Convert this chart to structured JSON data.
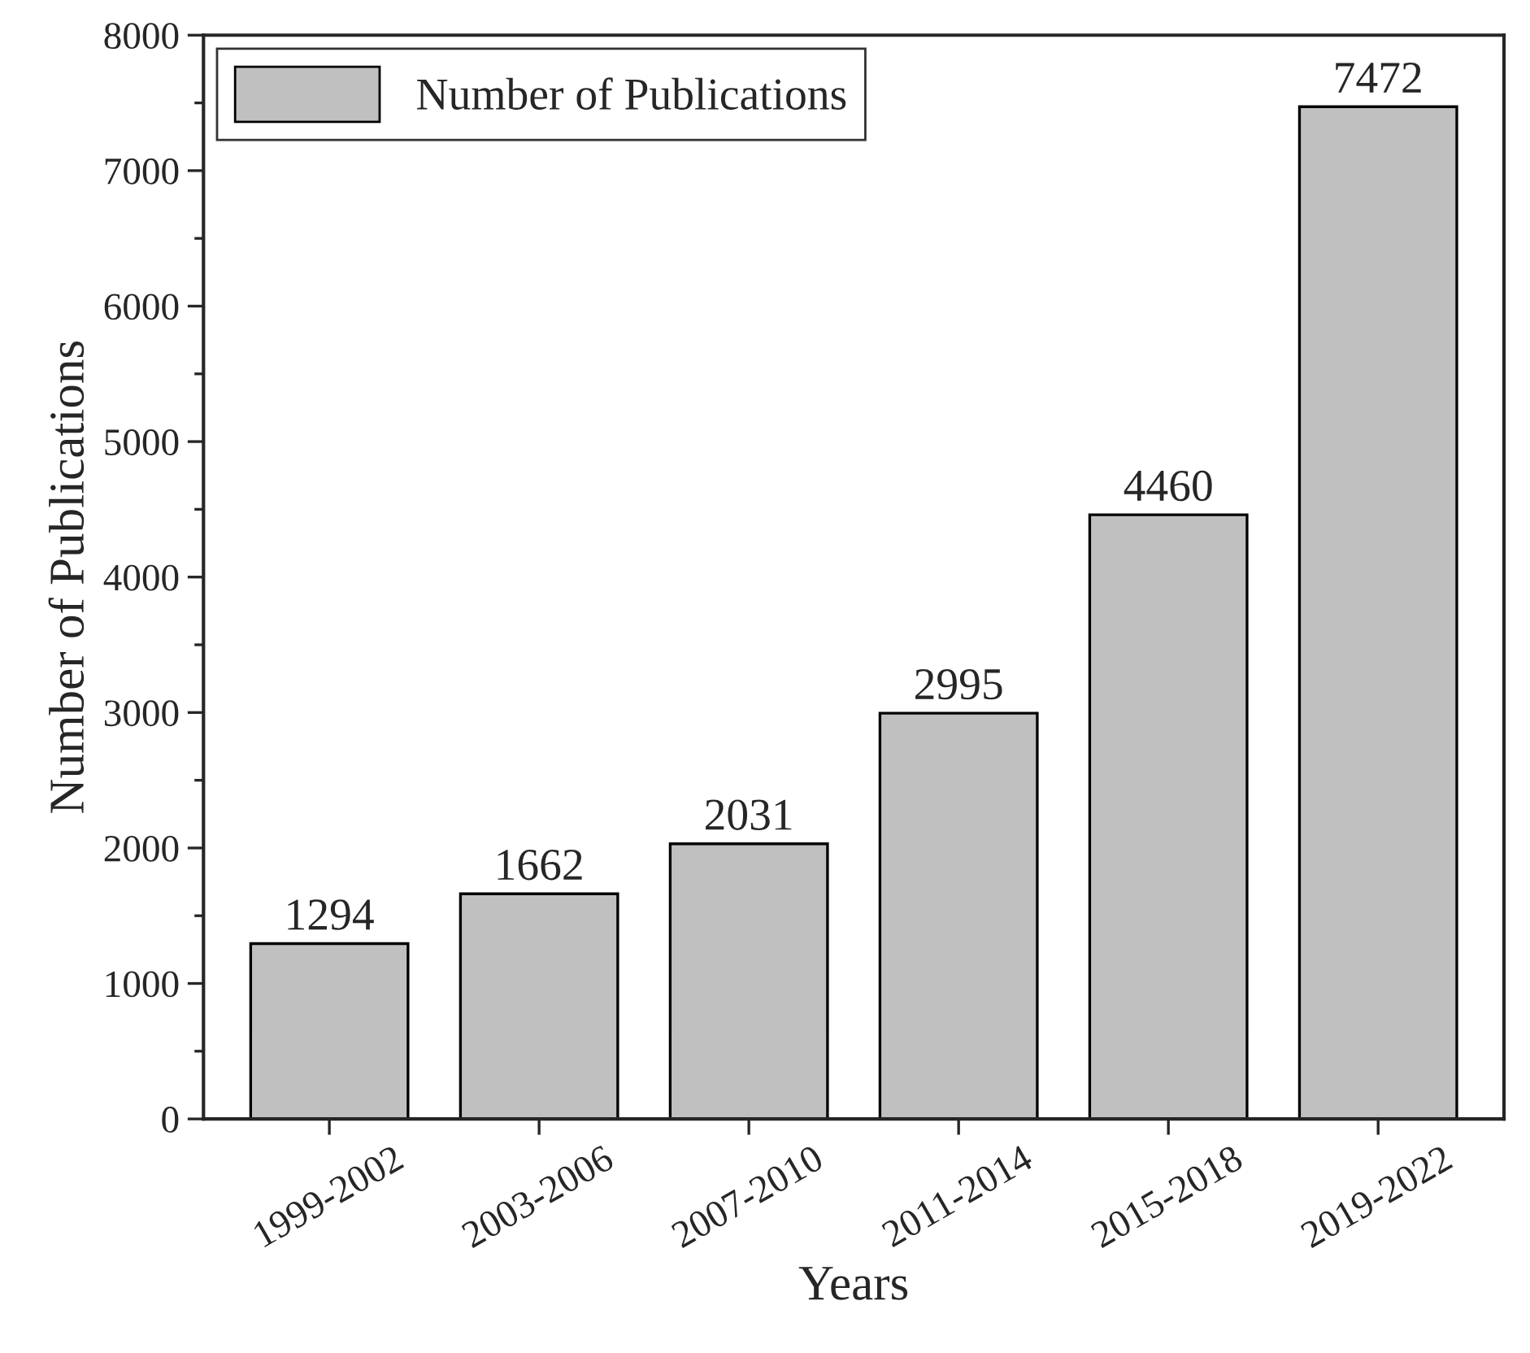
{
  "chart_data": {
    "type": "bar",
    "xlabel": "Years",
    "ylabel": "Number of Publications",
    "categories": [
      "1999-2002",
      "2003-2006",
      "2007-2010",
      "2011-2014",
      "2015-2018",
      "2019-2022"
    ],
    "series": [
      {
        "name": "Number of Publications",
        "color": "#c0c0c0",
        "values": [
          1294,
          1662,
          2031,
          2995,
          4460,
          7472
        ]
      }
    ],
    "ylim": [
      0,
      8000
    ],
    "yticks": [
      0,
      1000,
      2000,
      3000,
      4000,
      5000,
      6000,
      7000,
      8000
    ],
    "data_labels": true,
    "legend": "top left",
    "grid": false
  }
}
